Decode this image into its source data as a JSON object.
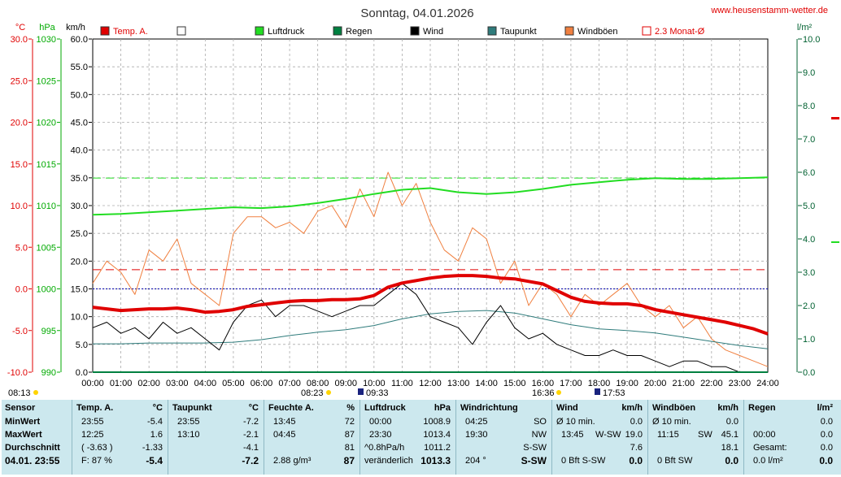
{
  "page": {
    "title": "Sonntag, 04.01.2026",
    "site": "www.heusenstamm-wetter.de"
  },
  "axes": {
    "temp_unit": "°C",
    "press_unit": "hPa",
    "wind_unit": "km/h",
    "rain_unit": "l/m²",
    "temp_ticks": [
      "30.0",
      "25.0",
      "20.0",
      "15.0",
      "10.0",
      "5.0",
      "0.0",
      "-5.0",
      "-10.0"
    ],
    "press_ticks": [
      "1030",
      "1025",
      "1020",
      "1015",
      "1010",
      "1005",
      "1000",
      "995",
      "990"
    ],
    "wind_ticks": [
      "60.0",
      "55.0",
      "50.0",
      "45.0",
      "40.0",
      "35.0",
      "30.0",
      "25.0",
      "20.0",
      "15.0",
      "10.0",
      "5.0",
      "0.0"
    ],
    "rain_ticks": [
      "10.0",
      "9.0",
      "8.0",
      "7.0",
      "6.0",
      "5.0",
      "4.0",
      "3.0",
      "2.0",
      "1.0",
      "0.0"
    ],
    "time_ticks": [
      "00:00",
      "01:00",
      "02:00",
      "03:00",
      "04:00",
      "05:00",
      "06:00",
      "07:00",
      "08:00",
      "09:00",
      "10:00",
      "11:00",
      "12:00",
      "13:00",
      "14:00",
      "15:00",
      "16:00",
      "17:00",
      "18:00",
      "19:00",
      "20:00",
      "21:00",
      "22:00",
      "23:00",
      "24:00"
    ]
  },
  "legend": [
    {
      "label": "Temp. A.",
      "color": "#e00000"
    },
    {
      "label": "",
      "color": "#ffffff"
    },
    {
      "label": "Luftdruck",
      "color": "#22dd22"
    },
    {
      "label": "Regen",
      "color": "#008040"
    },
    {
      "label": "Wind",
      "color": "#000000"
    },
    {
      "label": "Taupunkt",
      "color": "#2e7b7b"
    },
    {
      "label": "Windböen",
      "color": "#f08040"
    },
    {
      "label": "2.3 Monat-Ø",
      "color": "#e00000"
    }
  ],
  "sun": {
    "sunrise_label": "08:13",
    "sunrise_time": "08:23",
    "moon_set": "09:33",
    "sunset_time": "16:36",
    "moon_rise": "17:53"
  },
  "chart_data": {
    "type": "line",
    "x_label": "time",
    "xlim": [
      0,
      24
    ],
    "wind_ylim": [
      0,
      60
    ],
    "temp_ylim": [
      -10,
      30
    ],
    "press_ylim": [
      990,
      1030
    ],
    "rain_ylim": [
      0,
      10
    ],
    "reference_lines": {
      "temp_month_avg": 2.3,
      "temp_zero": 0.0,
      "pressure_ref": 1013.3
    },
    "series": [
      {
        "name": "Temp. A.",
        "axis": "temp",
        "color": "#e00000",
        "x": [
          0,
          0.5,
          1,
          1.5,
          2,
          2.5,
          3,
          3.5,
          4,
          4.5,
          5,
          5.5,
          6,
          6.5,
          7,
          7.5,
          8,
          8.5,
          9,
          9.5,
          10,
          10.5,
          11,
          11.5,
          12,
          12.5,
          13,
          13.5,
          14,
          14.5,
          15,
          15.5,
          16,
          16.5,
          17,
          17.5,
          18,
          18.5,
          19,
          19.5,
          20,
          20.5,
          21,
          21.5,
          22,
          22.5,
          23,
          23.5,
          24
        ],
        "y": [
          -2.2,
          -2.4,
          -2.6,
          -2.5,
          -2.4,
          -2.4,
          -2.3,
          -2.5,
          -2.8,
          -2.7,
          -2.5,
          -2.1,
          -1.9,
          -1.7,
          -1.5,
          -1.4,
          -1.4,
          -1.3,
          -1.3,
          -1.2,
          -0.8,
          0.2,
          0.7,
          1.0,
          1.3,
          1.5,
          1.6,
          1.6,
          1.5,
          1.3,
          1.2,
          0.9,
          0.6,
          -0.2,
          -1.0,
          -1.5,
          -1.7,
          -1.8,
          -1.8,
          -2.0,
          -2.5,
          -2.8,
          -3.1,
          -3.4,
          -3.7,
          -4.0,
          -4.4,
          -4.8,
          -5.4
        ]
      },
      {
        "name": "Taupunkt",
        "axis": "temp",
        "color": "#2e7b7b",
        "x": [
          0,
          1,
          2,
          3,
          4,
          5,
          6,
          7,
          8,
          9,
          10,
          11,
          12,
          13,
          14,
          15,
          16,
          17,
          18,
          19,
          20,
          21,
          22,
          23,
          24
        ],
        "y": [
          -6.6,
          -6.6,
          -6.5,
          -6.5,
          -6.5,
          -6.4,
          -6.1,
          -5.6,
          -5.2,
          -4.9,
          -4.4,
          -3.6,
          -3.0,
          -2.7,
          -2.6,
          -2.9,
          -3.6,
          -4.3,
          -4.8,
          -5.0,
          -5.3,
          -5.8,
          -6.3,
          -6.8,
          -7.2
        ]
      },
      {
        "name": "Luftdruck",
        "axis": "press",
        "color": "#22dd22",
        "x": [
          0,
          1,
          2,
          3,
          4,
          5,
          6,
          7,
          8,
          9,
          10,
          11,
          12,
          13,
          14,
          15,
          16,
          17,
          18,
          19,
          20,
          21,
          22,
          23,
          24
        ],
        "y": [
          1008.9,
          1009.0,
          1009.2,
          1009.4,
          1009.6,
          1009.8,
          1009.7,
          1009.9,
          1010.3,
          1010.8,
          1011.4,
          1011.9,
          1012.1,
          1011.6,
          1011.4,
          1011.6,
          1012.0,
          1012.5,
          1012.8,
          1013.1,
          1013.3,
          1013.2,
          1013.2,
          1013.3,
          1013.4
        ]
      },
      {
        "name": "Wind",
        "axis": "wind",
        "color": "#000000",
        "x": [
          0,
          0.5,
          1,
          1.5,
          2,
          2.5,
          3,
          3.5,
          4,
          4.5,
          5,
          5.5,
          6,
          6.5,
          7,
          7.5,
          8,
          8.5,
          9,
          9.5,
          10,
          10.5,
          11,
          11.5,
          12,
          12.5,
          13,
          13.5,
          14,
          14.5,
          15,
          15.5,
          16,
          16.5,
          17,
          17.5,
          18,
          18.5,
          19,
          19.5,
          20,
          20.5,
          21,
          21.5,
          22,
          22.5,
          23,
          23.5,
          24
        ],
        "y": [
          8,
          9,
          7,
          8,
          6,
          9,
          7,
          8,
          6,
          4,
          9,
          12,
          13,
          10,
          12,
          12,
          11,
          10,
          11,
          12,
          12,
          14,
          16,
          14,
          10,
          9,
          8,
          5,
          9,
          12,
          8,
          6,
          7,
          5,
          4,
          3,
          3,
          4,
          3,
          3,
          2,
          1,
          2,
          2,
          1,
          1,
          0,
          0,
          0
        ]
      },
      {
        "name": "Windböen",
        "axis": "wind",
        "color": "#f08040",
        "x": [
          0,
          0.5,
          1,
          1.5,
          2,
          2.5,
          3,
          3.5,
          4,
          4.5,
          5,
          5.5,
          6,
          6.5,
          7,
          7.5,
          8,
          8.5,
          9,
          9.5,
          10,
          10.5,
          11,
          11.5,
          12,
          12.5,
          13,
          13.5,
          14,
          14.5,
          15,
          15.5,
          16,
          16.5,
          17,
          17.5,
          18,
          18.5,
          19,
          19.5,
          20,
          20.5,
          21,
          21.5,
          22,
          22.5,
          23,
          23.5,
          24
        ],
        "y": [
          16,
          20,
          18,
          14,
          22,
          20,
          24,
          16,
          14,
          12,
          25,
          28,
          28,
          26,
          27,
          25,
          29,
          30,
          26,
          33,
          28,
          36,
          30,
          34,
          27,
          22,
          20,
          26,
          24,
          16,
          20,
          12,
          16,
          14,
          10,
          14,
          12,
          14,
          16,
          12,
          10,
          12,
          8,
          10,
          6,
          4,
          3,
          2,
          1
        ]
      },
      {
        "name": "Regen",
        "axis": "rain",
        "color": "#008040",
        "x": [
          0,
          24
        ],
        "y": [
          0.0,
          0.0
        ]
      }
    ]
  },
  "stats": {
    "labels": {
      "sensor": "Sensor",
      "min": "MinWert",
      "max": "MaxWert",
      "avg": "Durchschnitt",
      "now": "04.01. 23:55"
    },
    "temp": {
      "head": "Temp. A.",
      "unit": "°C",
      "min_t": "23:55",
      "min_v": "-5.4",
      "max_t": "12:25",
      "max_v": "1.6",
      "avg_t": "( -3.63 )",
      "avg_v": "-1.33",
      "now_t": "F: 87 %",
      "now_v": "-5.4"
    },
    "dew": {
      "head": "Taupunkt",
      "unit": "°C",
      "min_t": "23:55",
      "min_v": "-7.2",
      "max_t": "13:10",
      "max_v": "-2.1",
      "avg_v": "-4.1",
      "now_v": "-7.2"
    },
    "hum": {
      "head": "Feuchte A.",
      "unit": "%",
      "min_t": "13:45",
      "min_v": "72",
      "max_t": "04:45",
      "max_v": "87",
      "avg_v": "81",
      "now_t": "2.88 g/m³",
      "now_v": "87"
    },
    "press": {
      "head": "Luftdruck",
      "unit": "hPa",
      "min_t": "00:00",
      "min_v": "1008.9",
      "max_t": "23:30",
      "max_v": "1013.4",
      "avg_t": "^0.8hPa/h",
      "avg_v": "1011.2",
      "now_t": "veränderlich",
      "now_v": "1013.3"
    },
    "dir": {
      "head": "Windrichtung",
      "min_t": "04:25",
      "min_v": "SO",
      "max_t": "19:30",
      "max_v": "NW",
      "avg_v": "S-SW",
      "now_t": "204 °",
      "now_v": "S-SW"
    },
    "wind": {
      "head": "Wind",
      "unit": "km/h",
      "min_t": "Ø 10 min.",
      "min_v": "0.0",
      "max_t": "13:45",
      "max_dir": "W-SW",
      "max_v": "19.0",
      "avg_v": "7.6",
      "now_t": "0 Bft S-SW",
      "now_v": "0.0"
    },
    "gust": {
      "head": "Windböen",
      "unit": "km/h",
      "min_t": "Ø 10 min.",
      "min_v": "0.0",
      "max_t": "11:15",
      "max_dir": "SW",
      "max_v": "45.1",
      "avg_v": "18.1",
      "now_t": "0 Bft SW",
      "now_v": "0.0"
    },
    "rain": {
      "head": "Regen",
      "unit": "l/m²",
      "min_t": "00:00",
      "min_v": "0.0",
      "max_v": "0.0",
      "avg_t": "Gesamt:",
      "avg_v": "0.0",
      "now_t": "0.0 l/m²",
      "now_v": "0.0"
    }
  }
}
